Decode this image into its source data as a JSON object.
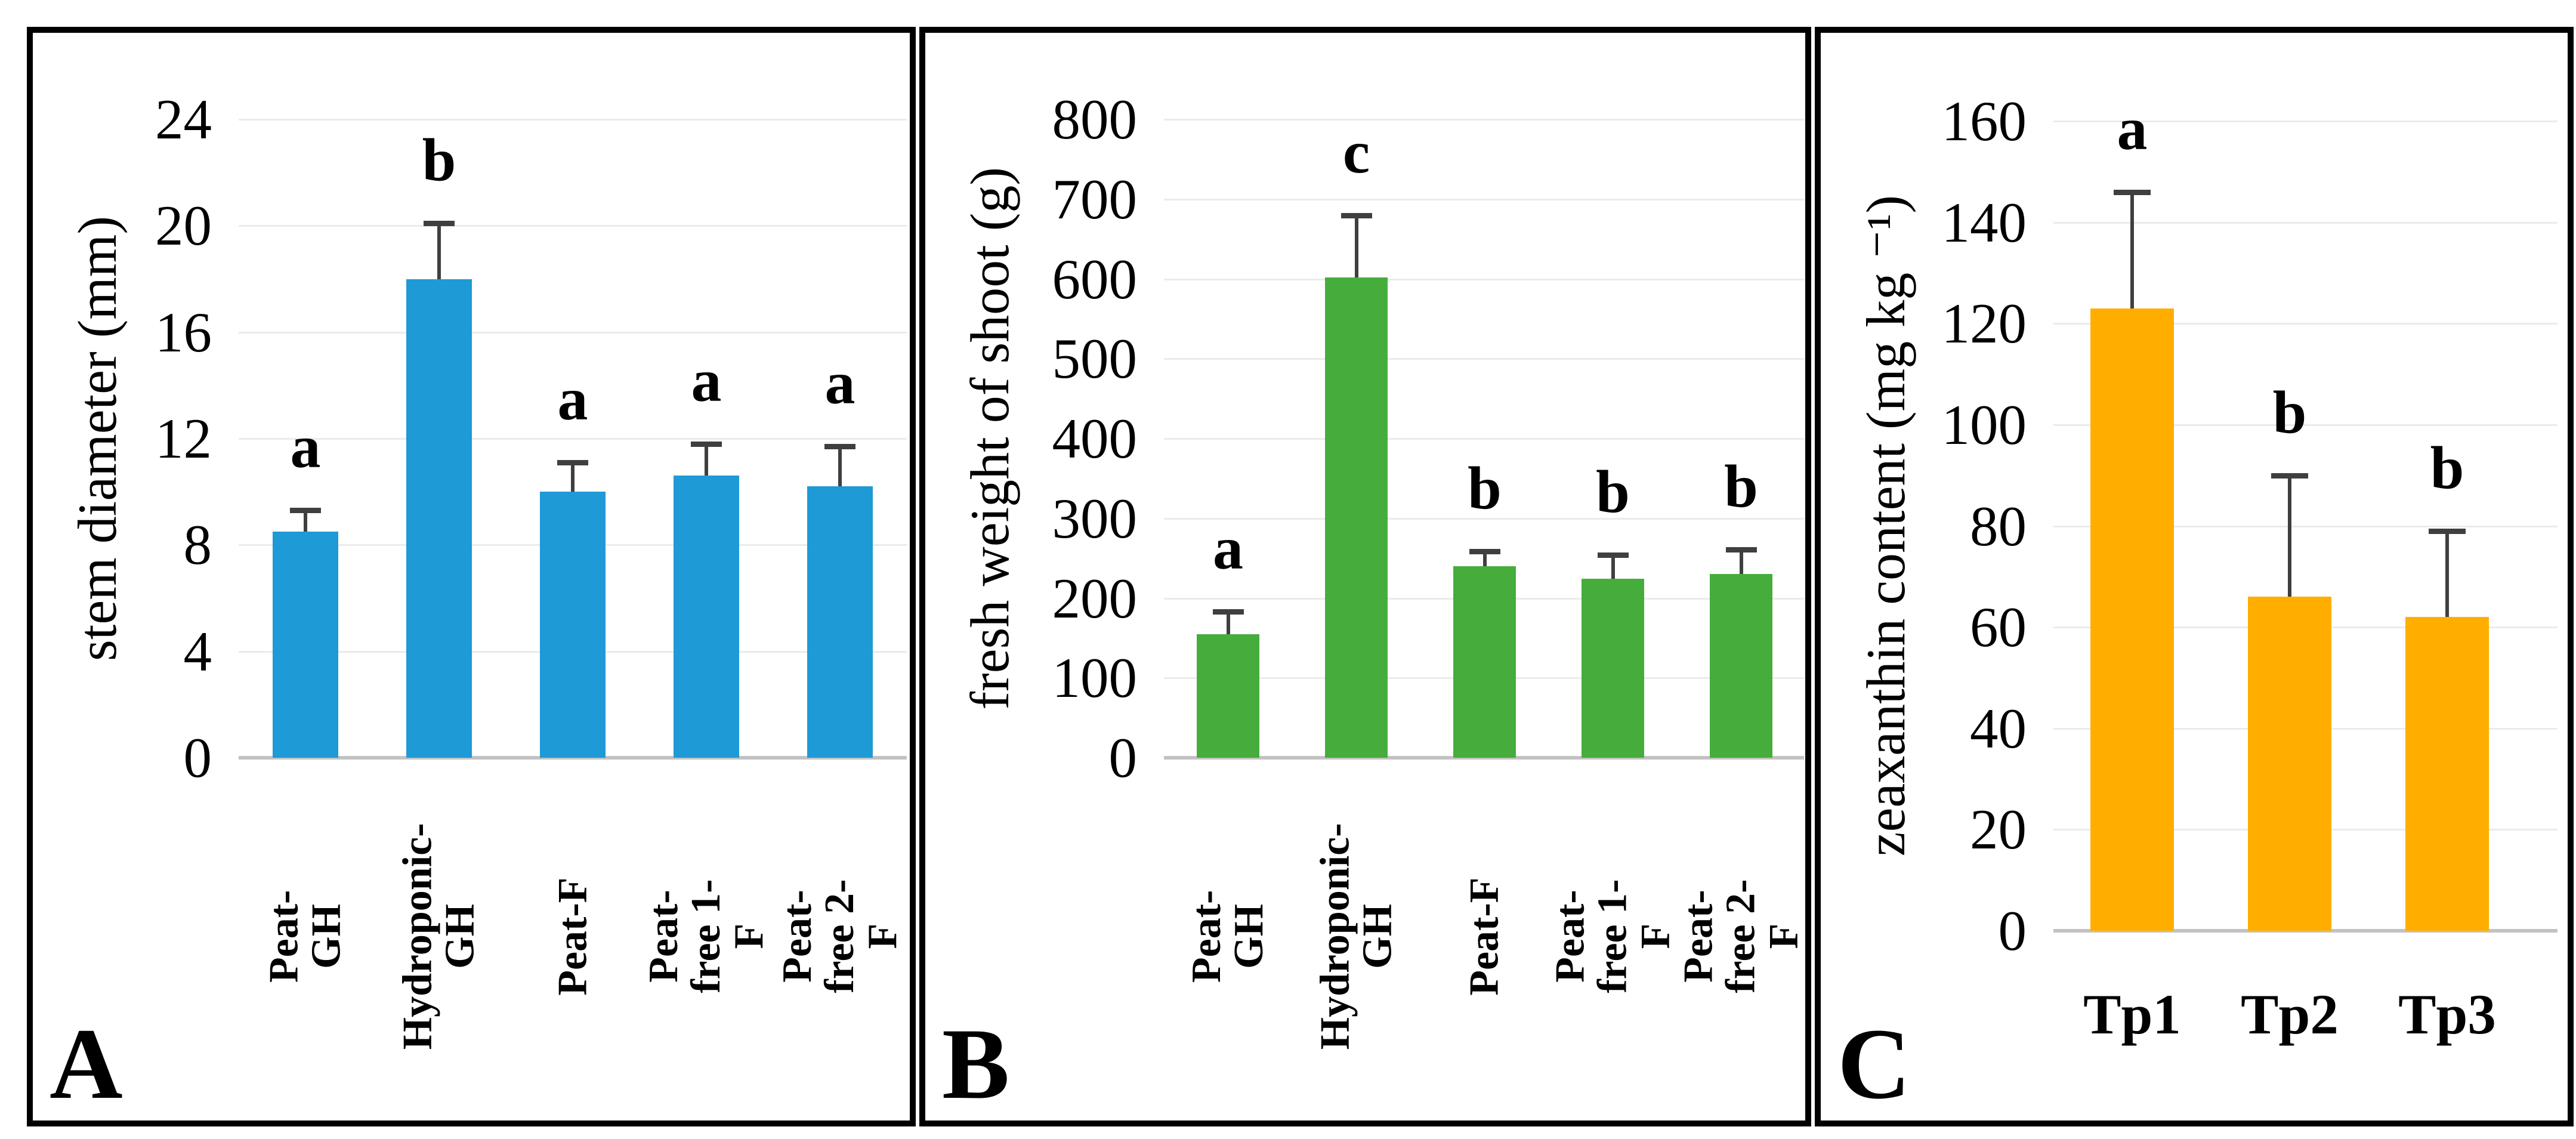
{
  "figure": {
    "background": "#FFFFFF",
    "panel_border_color": "#000000",
    "gridline_color": "#EBEBEB",
    "axis_baseline_color": "#C2C2C2",
    "error_bar_color": "#3F3F3F"
  },
  "chart_data": [
    {
      "panel_label": "A",
      "type": "bar",
      "title": "",
      "ylabel": "stem diameter (mm)",
      "xlabel": "",
      "categories": [
        "Peat- GH",
        "Hydroponic-\nGH",
        "Peat-F",
        "Peat-free 1-F",
        "Peat-free 2-F"
      ],
      "values": [
        8.5,
        18,
        10,
        10.6,
        10.2
      ],
      "errors_upper": [
        0.8,
        2.1,
        1.1,
        1.2,
        1.5
      ],
      "sig_letters": [
        "a",
        "b",
        "a",
        "a",
        "a"
      ],
      "yticks": [
        0,
        4,
        8,
        12,
        16,
        20,
        24
      ],
      "ylim": [
        0,
        24
      ],
      "bar_color": "#1E9AD6",
      "grid": true,
      "legend": "none",
      "x_tick_rotation": 90
    },
    {
      "panel_label": "B",
      "type": "bar",
      "title": "",
      "ylabel": "fresh weight of shoot (g)",
      "xlabel": "",
      "categories": [
        "Peat- GH",
        "Hydroponic-\nGH",
        "Peat-F",
        "Peat-free 1-F",
        "Peat-free 2-F"
      ],
      "values": [
        155,
        602,
        240,
        224,
        230
      ],
      "errors_upper": [
        28,
        78,
        19,
        30,
        31
      ],
      "sig_letters": [
        "a",
        "c",
        "b",
        "b",
        "b"
      ],
      "yticks": [
        0,
        100,
        200,
        300,
        400,
        500,
        600,
        700,
        800
      ],
      "ylim": [
        0,
        800
      ],
      "bar_color": "#46AD3C",
      "grid": true,
      "legend": "none",
      "x_tick_rotation": 90
    },
    {
      "panel_label": "C",
      "type": "bar",
      "title": "",
      "ylabel": "zeaxanthin content (mg kg ⁻¹)",
      "xlabel": "",
      "categories": [
        "Tp1",
        "Tp2",
        "Tp3"
      ],
      "values": [
        123,
        66,
        62
      ],
      "errors_upper": [
        23,
        24,
        17
      ],
      "sig_letters": [
        "a",
        "b",
        "b"
      ],
      "yticks": [
        0,
        20,
        40,
        60,
        80,
        100,
        120,
        140,
        160
      ],
      "ylim": [
        0,
        160
      ],
      "bar_color": "#FFAE00",
      "grid": true,
      "legend": "none",
      "x_tick_rotation": 0
    }
  ]
}
